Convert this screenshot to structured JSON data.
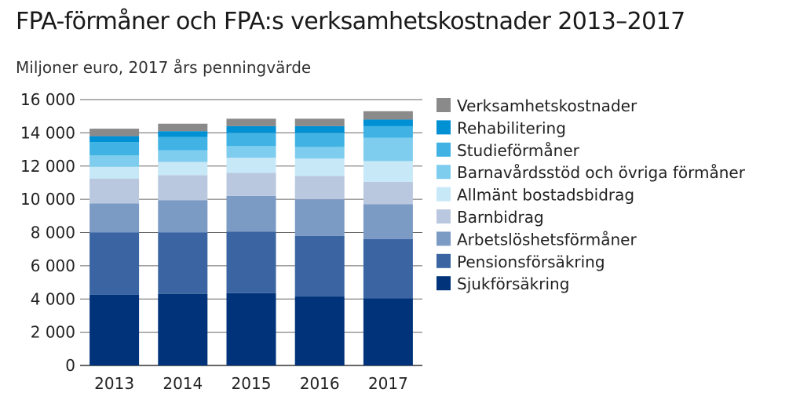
{
  "title": "FPA-förmåner och FPA:s verksamhetskostnader 2013–2017",
  "subtitle": "Miljoner euro, 2017 års penningvärde",
  "chart_data": {
    "type": "bar",
    "stacked": true,
    "categories": [
      "2013",
      "2014",
      "2015",
      "2016",
      "2017"
    ],
    "ylim": [
      0,
      16000
    ],
    "yticks": [
      0,
      2000,
      4000,
      6000,
      8000,
      10000,
      12000,
      14000,
      16000
    ],
    "ytick_labels": [
      "0",
      "2 000",
      "4 000",
      "6 000",
      "8 000",
      "10 000",
      "12 000",
      "14 000",
      "16 000"
    ],
    "grid": true,
    "legend_position": "right",
    "series": [
      {
        "name": "Sjukförsäkring",
        "color": "#00337a",
        "values": [
          4250,
          4300,
          4350,
          4150,
          4050
        ]
      },
      {
        "name": "Pensionsförsäkring",
        "color": "#3a65a2",
        "values": [
          3750,
          3700,
          3700,
          3650,
          3550
        ]
      },
      {
        "name": "Arbetslöshetsförmåner",
        "color": "#7b9ac4",
        "values": [
          1750,
          1950,
          2150,
          2200,
          2100
        ]
      },
      {
        "name": "Barnbidrag",
        "color": "#b9c8df",
        "values": [
          1500,
          1500,
          1400,
          1400,
          1350
        ]
      },
      {
        "name": "Allmänt bostadsbidrag",
        "color": "#c7e8f7",
        "values": [
          700,
          800,
          900,
          1050,
          1250
        ]
      },
      {
        "name": "Barnavårdsstöd och övriga förmåner",
        "color": "#7fcdee",
        "values": [
          700,
          700,
          700,
          700,
          1400
        ]
      },
      {
        "name": "Studieförmåner",
        "color": "#40b3e4",
        "values": [
          800,
          800,
          800,
          850,
          700
        ]
      },
      {
        "name": "Rehabilitering",
        "color": "#0090d4",
        "values": [
          350,
          350,
          400,
          400,
          400
        ]
      },
      {
        "name": "Verksamhetskostnader",
        "color": "#8a8a8a",
        "values": [
          450,
          450,
          450,
          450,
          500
        ]
      }
    ]
  }
}
